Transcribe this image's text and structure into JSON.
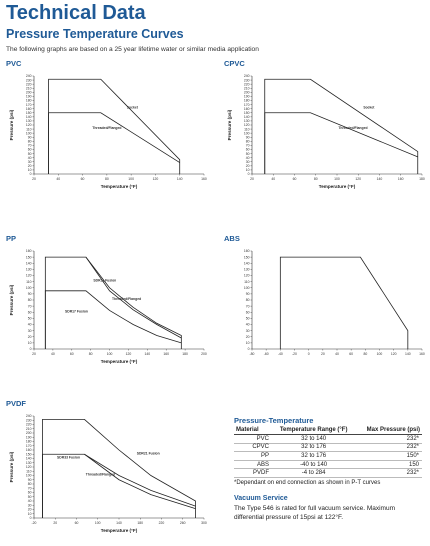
{
  "page": {
    "title": "Technical Data",
    "subtitle": "Pressure Temperature Curves",
    "intro": "The following graphs are based on a 25 year lifetime water or similar media application"
  },
  "colors": {
    "heading": "#1f5a96",
    "curve": "#222222"
  },
  "chart_data": [
    {
      "type": "line",
      "title": "PVC",
      "xlabel": "Temperature (°F)",
      "ylabel": "Pressure (psi)",
      "xlim": [
        20,
        160
      ],
      "ylim": [
        0,
        240
      ],
      "xticks": [
        20,
        40,
        60,
        80,
        100,
        120,
        140,
        160
      ],
      "yticks": [
        0,
        10,
        20,
        30,
        40,
        50,
        60,
        70,
        80,
        90,
        100,
        110,
        120,
        130,
        140,
        150,
        160,
        170,
        180,
        190,
        200,
        210,
        220,
        230,
        240
      ],
      "grid": false,
      "series": [
        {
          "name": "Socket",
          "x": [
            32,
            32,
            75,
            140,
            140
          ],
          "y": [
            0,
            232,
            232,
            35,
            0
          ],
          "label_at": [
            101,
            160
          ]
        },
        {
          "name": "Threaded/Flanged",
          "x": [
            32,
            32,
            75,
            140
          ],
          "y": [
            0,
            150,
            150,
            28
          ],
          "label_at": [
            80,
            110
          ]
        }
      ]
    },
    {
      "type": "line",
      "title": "CPVC",
      "xlabel": "Temperature (°F)",
      "ylabel": "Pressure (psi)",
      "xlim": [
        20,
        180
      ],
      "ylim": [
        0,
        240
      ],
      "xticks": [
        20,
        40,
        60,
        80,
        100,
        120,
        140,
        160,
        180
      ],
      "yticks": [
        0,
        10,
        20,
        30,
        40,
        50,
        60,
        70,
        80,
        90,
        100,
        110,
        120,
        130,
        140,
        150,
        160,
        170,
        180,
        190,
        200,
        210,
        220,
        230,
        240
      ],
      "grid": false,
      "series": [
        {
          "name": "Socket",
          "x": [
            32,
            32,
            75,
            176,
            176
          ],
          "y": [
            0,
            232,
            232,
            55,
            0
          ],
          "label_at": [
            130,
            160
          ]
        },
        {
          "name": "Threaded/Flanged",
          "x": [
            32,
            32,
            75,
            176
          ],
          "y": [
            0,
            150,
            150,
            42
          ],
          "label_at": [
            115,
            110
          ]
        }
      ]
    },
    {
      "type": "line",
      "title": "PP",
      "xlabel": "Temperature (°F)",
      "ylabel": "Pressure (psi)",
      "xlim": [
        20,
        200
      ],
      "ylim": [
        0,
        160
      ],
      "xticks": [
        20,
        40,
        60,
        80,
        100,
        120,
        140,
        160,
        180,
        200
      ],
      "yticks": [
        0,
        10,
        20,
        30,
        40,
        50,
        60,
        70,
        80,
        90,
        100,
        110,
        120,
        130,
        140,
        150,
        160
      ],
      "grid": false,
      "series": [
        {
          "name": "SDR11 Fusion",
          "x": [
            32,
            32,
            75,
            100,
            125,
            150,
            176,
            176
          ],
          "y": [
            0,
            150,
            150,
            100,
            68,
            42,
            22,
            0
          ],
          "label_at": [
            95,
            110
          ]
        },
        {
          "name": "Threaded/Flanged",
          "x": [
            75,
            100,
            125,
            150,
            176
          ],
          "y": [
            150,
            95,
            64,
            40,
            18
          ],
          "label_at": [
            118,
            80
          ]
        },
        {
          "name": "SDR17 Fusion",
          "x": [
            32,
            32,
            75,
            100,
            125,
            150,
            176
          ],
          "y": [
            0,
            95,
            95,
            63,
            40,
            22,
            10
          ],
          "label_at": [
            65,
            60
          ]
        }
      ]
    },
    {
      "type": "line",
      "title": "ABS",
      "xlabel": "",
      "ylabel": "",
      "xlim": [
        -80,
        160
      ],
      "ylim": [
        0,
        160
      ],
      "xticks": [
        -80,
        -60,
        -40,
        -20,
        0,
        20,
        40,
        60,
        80,
        100,
        120,
        140,
        160
      ],
      "yticks": [
        0,
        10,
        20,
        30,
        40,
        50,
        60,
        70,
        80,
        90,
        100,
        110,
        120,
        130,
        140,
        150,
        160
      ],
      "grid": false,
      "series": [
        {
          "name": "",
          "x": [
            -40,
            -40,
            73,
            140,
            140
          ],
          "y": [
            0,
            150,
            150,
            30,
            0
          ],
          "label_at": [
            0,
            0
          ]
        }
      ]
    },
    {
      "type": "line",
      "title": "PVDF",
      "xlabel": "Temperature (°F)",
      "ylabel": "Pressure (psi)",
      "xlim": [
        -20,
        300
      ],
      "ylim": [
        0,
        240
      ],
      "xticks": [
        -20,
        20,
        60,
        100,
        140,
        180,
        220,
        260,
        300
      ],
      "yticks": [
        0,
        10,
        20,
        30,
        40,
        50,
        60,
        70,
        80,
        90,
        100,
        110,
        120,
        130,
        140,
        150,
        160,
        170,
        180,
        190,
        200,
        210,
        220,
        230,
        240
      ],
      "grid": false,
      "series": [
        {
          "name": "SDR21 Fusion",
          "x": [
            -4,
            -4,
            75,
            140,
            200,
            284,
            284
          ],
          "y": [
            0,
            232,
            232,
            160,
            100,
            40,
            0
          ],
          "label_at": [
            195,
            150
          ]
        },
        {
          "name": "SDR33 Fusion",
          "x": [
            -4,
            -4,
            75,
            140,
            200,
            284
          ],
          "y": [
            0,
            150,
            150,
            100,
            65,
            28
          ],
          "label_at": [
            45,
            140
          ]
        },
        {
          "name": "Threaded/Flanged",
          "x": [
            75,
            140,
            200,
            284
          ],
          "y": [
            150,
            90,
            55,
            22
          ],
          "label_at": [
            105,
            100
          ]
        }
      ]
    }
  ],
  "pt_table": {
    "title": "Pressure-Temperature",
    "headers": [
      "Material",
      "Temperature Range (°F)",
      "Max Pressure (psi)"
    ],
    "rows": [
      {
        "material": "PVC",
        "range": "32 to 140",
        "max": "232*"
      },
      {
        "material": "CPVC",
        "range": "32 to 176",
        "max": "232*"
      },
      {
        "material": "PP",
        "range": "32 to 176",
        "max": "150*"
      },
      {
        "material": "ABS",
        "range": "-40 to 140",
        "max": "150"
      },
      {
        "material": "PVDF",
        "range": "-4 to 284",
        "max": "232*"
      }
    ],
    "note": "*Dependant on end connection as shown in P-T curves"
  },
  "vacuum": {
    "title": "Vacuum Service",
    "text": "The Type 546 is rated for full vacuum service. Maximum differential pressure of 15psi at 122°F."
  }
}
